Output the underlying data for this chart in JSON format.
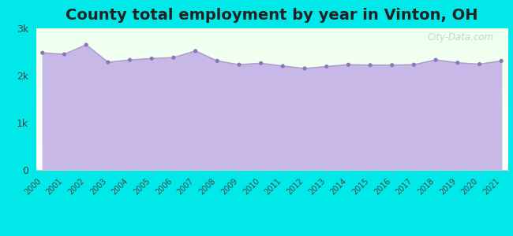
{
  "title": "County total employment by year in Vinton, OH",
  "years": [
    2000,
    2001,
    2002,
    2003,
    2004,
    2005,
    2006,
    2007,
    2008,
    2009,
    2010,
    2011,
    2012,
    2013,
    2014,
    2015,
    2016,
    2017,
    2018,
    2019,
    2020,
    2021
  ],
  "values": [
    2480,
    2450,
    2650,
    2280,
    2330,
    2360,
    2380,
    2520,
    2310,
    2230,
    2260,
    2200,
    2150,
    2190,
    2230,
    2220,
    2220,
    2230,
    2330,
    2270,
    2240,
    2310
  ],
  "ylim": [
    0,
    3000
  ],
  "yticks": [
    0,
    1000,
    2000,
    3000
  ],
  "ytick_labels": [
    "0",
    "1k",
    "2k",
    "3k"
  ],
  "line_color": "#b0a0d0",
  "fill_color": "#c8b8e8",
  "marker_color": "#8878b8",
  "bg_outer": "#00e8e8",
  "bg_plot_top_color": "#eeffee",
  "bg_plot_bottom_color": "#ffffff",
  "title_fontsize": 14,
  "title_color": "#222222",
  "watermark_text": "City-Data.com",
  "watermark_color": "#aacccc"
}
